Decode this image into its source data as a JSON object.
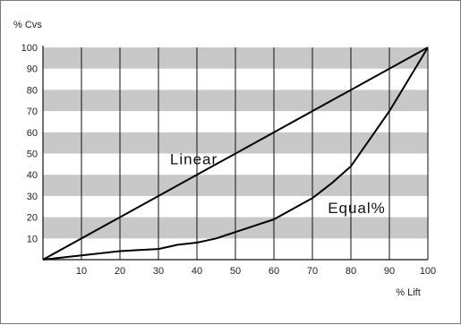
{
  "chart_data": {
    "type": "line",
    "ylabel": "% Cvs",
    "xlabel": "% Lift",
    "xlim": [
      0,
      100
    ],
    "ylim": [
      0,
      100
    ],
    "x_ticks": [
      10,
      20,
      30,
      40,
      50,
      60,
      70,
      80,
      90,
      100
    ],
    "y_ticks": [
      10,
      20,
      30,
      40,
      50,
      60,
      70,
      80,
      90,
      100
    ],
    "grid": "vertical lines at every 10 % lift; alternating grey horizontal bands",
    "band_color": "#c8c8c8",
    "line_color": "#000000",
    "series": [
      {
        "name": "Linear",
        "x": [
          0,
          100
        ],
        "y": [
          0,
          100
        ]
      },
      {
        "name": "Equal%",
        "x": [
          0,
          5,
          10,
          15,
          20,
          25,
          30,
          35,
          40,
          45,
          50,
          55,
          60,
          65,
          70,
          75,
          80,
          85,
          90,
          95,
          100
        ],
        "y": [
          0,
          1,
          2,
          3,
          4,
          4.5,
          5,
          7,
          8,
          10,
          13,
          16,
          19,
          24,
          29,
          36,
          44,
          57,
          70,
          85,
          100
        ]
      }
    ],
    "annotations": [
      {
        "text": "Linear",
        "series": "Linear",
        "x": 33,
        "y": 45
      },
      {
        "text": "Equal%",
        "series": "Equal%",
        "x": 74,
        "y": 22
      }
    ]
  }
}
